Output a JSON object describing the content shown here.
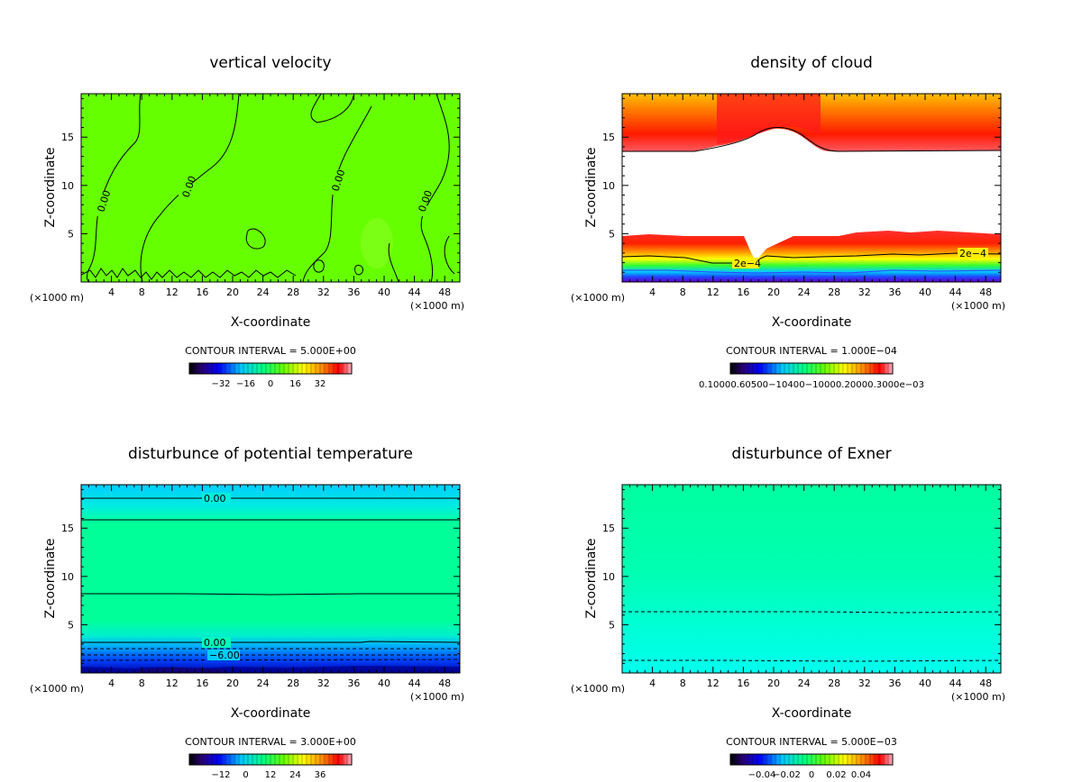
{
  "chart_data": [
    {
      "type": "heatmap",
      "title": "vertical velocity",
      "xlabel": "X-coordinate",
      "ylabel": "Z-coordinate",
      "x_unit": "(×1000 m)",
      "x_ticks": [
        "4",
        "8",
        "12",
        "16",
        "20",
        "24",
        "28",
        "32",
        "36",
        "40",
        "44",
        "48"
      ],
      "y_ticks": [
        "5",
        "10",
        "15"
      ],
      "xlim": [
        0,
        50
      ],
      "ylim": [
        0,
        19.5
      ],
      "contour_interval": "CONTOUR INTERVAL = 5.000E+00",
      "colorbar_ticks": [
        "−32",
        "−16",
        "0",
        "16",
        "32"
      ],
      "contour_labels": [
        "0.00",
        "0.00",
        "0.00",
        "0.00"
      ],
      "field_color": "#66ff00"
    },
    {
      "type": "heatmap",
      "title": "density of cloud",
      "xlabel": "X-coordinate",
      "ylabel": "Z-coordinate",
      "x_unit": "(×1000 m)",
      "x_ticks": [
        "4",
        "8",
        "12",
        "16",
        "20",
        "24",
        "28",
        "32",
        "36",
        "40",
        "44",
        "48"
      ],
      "y_ticks": [
        "5",
        "10",
        "15"
      ],
      "xlim": [
        0,
        50
      ],
      "ylim": [
        0,
        19.5
      ],
      "contour_interval": "CONTOUR INTERVAL = 1.000E−04",
      "colorbar_ticks": [
        "0.10000.60500−10400−10000.20000.3000e−03"
      ],
      "contour_labels": [
        "2e−4",
        "2e−4"
      ],
      "field_color": "#ff2a00"
    },
    {
      "type": "heatmap",
      "title": "disturbunce of potential temperature",
      "xlabel": "X-coordinate",
      "ylabel": "Z-coordinate",
      "x_unit": "(×1000 m)",
      "x_ticks": [
        "4",
        "8",
        "12",
        "16",
        "20",
        "24",
        "28",
        "32",
        "36",
        "40",
        "44",
        "48"
      ],
      "y_ticks": [
        "5",
        "10",
        "15"
      ],
      "xlim": [
        0,
        50
      ],
      "ylim": [
        0,
        19.5
      ],
      "contour_interval": "CONTOUR INTERVAL = 3.000E+00",
      "colorbar_ticks": [
        "−12",
        "0",
        "12",
        "24",
        "36"
      ],
      "contour_labels": [
        "0.00",
        "0.00",
        "−6.00"
      ],
      "field_color": "#00ff99"
    },
    {
      "type": "heatmap",
      "title": "disturbunce of Exner",
      "xlabel": "X-coordinate",
      "ylabel": "Z-coordinate",
      "x_unit": "(×1000 m)",
      "x_ticks": [
        "4",
        "8",
        "12",
        "16",
        "20",
        "24",
        "28",
        "32",
        "36",
        "40",
        "44",
        "48"
      ],
      "y_ticks": [
        "5",
        "10",
        "15"
      ],
      "xlim": [
        0,
        50
      ],
      "ylim": [
        0,
        19.5
      ],
      "contour_interval": "CONTOUR INTERVAL = 5.000E−03",
      "colorbar_ticks": [
        "−0.04",
        "−0.02",
        "0",
        "0.02",
        "0.04"
      ],
      "contour_labels": [],
      "field_color": "#00ffaa"
    }
  ]
}
